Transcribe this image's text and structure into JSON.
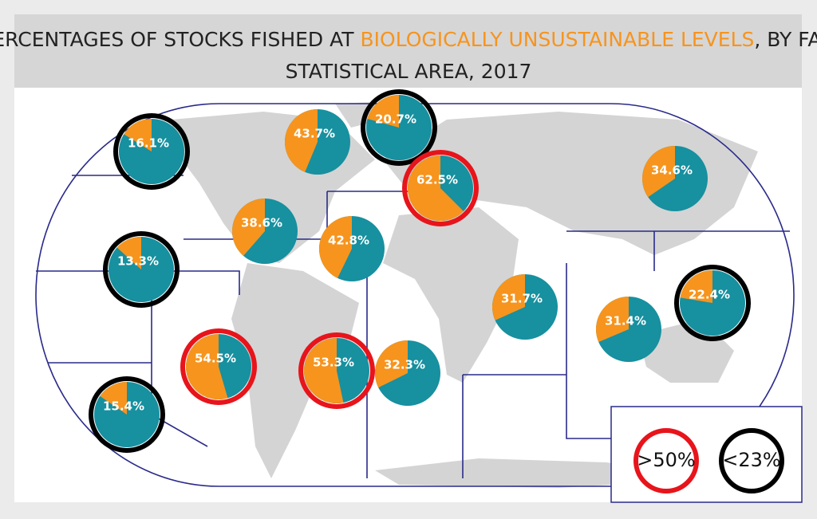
{
  "title": {
    "parts": [
      "PERCENTAGES OF STOCKS FISHED AT ",
      "BIOLOGICALLY UNSUSTAINABLE LEVELS",
      ", BY FAO",
      "STATISTICAL AREA, 2017"
    ],
    "highlight_color": "#f7941d"
  },
  "pies": {
    "colors": [
      "#f7941d",
      "#17909f"
    ],
    "values": [
      16.1,
      43.7,
      20.7,
      62.5,
      34.6,
      38.6,
      42.8,
      13.3,
      31.7,
      31.4,
      22.4,
      54.5,
      53.3,
      32.3,
      15.4
    ],
    "value_labels": [
      "16.1%",
      "43.7%",
      "20.7%",
      "62.5%",
      "34.6%",
      "38.6%",
      "42.8%",
      "13.3%",
      "31.7%",
      "31.4%",
      "22.4%",
      "54.5%",
      "53.3%",
      "32.3%",
      "15.4%"
    ],
    "rings": [
      1,
      null,
      1,
      0,
      null,
      null,
      null,
      1,
      null,
      null,
      1,
      0,
      0,
      null,
      1
    ]
  },
  "legend": [
    {
      "label": ">50%",
      "color": "#e8141b"
    },
    {
      "label": "<23%",
      "color": "#000000"
    }
  ]
}
